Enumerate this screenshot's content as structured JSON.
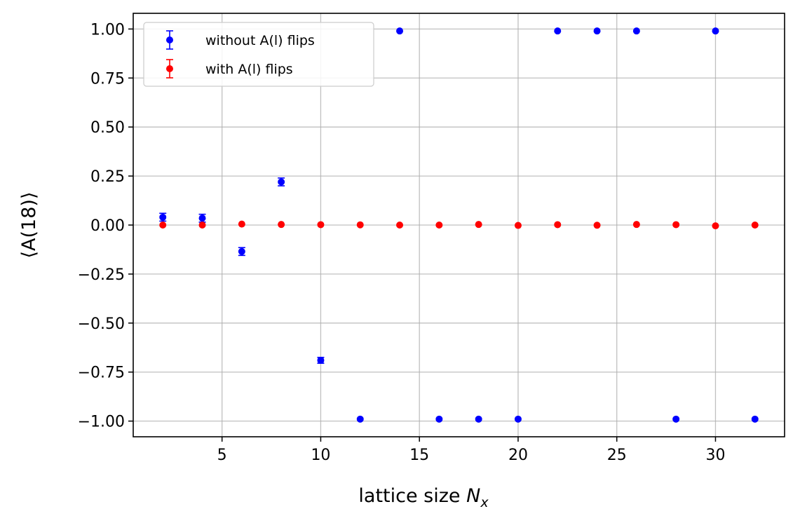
{
  "chart_data": {
    "type": "scatter",
    "xlabel_text": "lattice size ",
    "xlabel_var": "N",
    "xlabel_sub": "x",
    "ylabel_text": "⟨A(18)⟩",
    "xlim": [
      0.5,
      33.5
    ],
    "ylim": [
      -1.08,
      1.08
    ],
    "xticks": [
      5,
      10,
      15,
      20,
      25,
      30
    ],
    "xtick_labels": [
      "5",
      "10",
      "15",
      "20",
      "25",
      "30"
    ],
    "yticks": [
      1.0,
      0.75,
      0.5,
      0.25,
      0.0,
      -0.25,
      -0.5,
      -0.75,
      -1.0
    ],
    "ytick_labels": [
      "1.00",
      "0.75",
      "0.50",
      "0.25",
      "0.00",
      "−0.25",
      "−0.50",
      "−0.75",
      "−1.00"
    ],
    "grid": true,
    "legend_position": "top-left",
    "series": [
      {
        "name": "without A(l) flips",
        "color": "#0000ff",
        "marker": "circle-errorbar",
        "x": [
          2,
          4,
          6,
          8,
          10,
          12,
          14,
          16,
          18,
          20,
          22,
          24,
          26,
          28,
          30,
          32
        ],
        "y": [
          0.04,
          0.035,
          -0.135,
          0.22,
          -0.69,
          -0.99,
          0.99,
          -0.99,
          -0.99,
          -0.99,
          0.99,
          0.99,
          0.99,
          -0.99,
          0.99,
          -0.99
        ],
        "yerr": [
          0.02,
          0.02,
          0.02,
          0.02,
          0.015,
          0.0,
          0.0,
          0.0,
          0.0,
          0.0,
          0.0,
          0.0,
          0.0,
          0.0,
          0.0,
          0.0
        ]
      },
      {
        "name": "with A(l) flips",
        "color": "#ff0000",
        "marker": "circle-errorbar",
        "x": [
          2,
          4,
          6,
          8,
          10,
          12,
          14,
          16,
          18,
          20,
          22,
          24,
          26,
          28,
          30,
          32
        ],
        "y": [
          0.0,
          0.0,
          0.005,
          0.003,
          0.002,
          0.001,
          0.0,
          0.0,
          0.003,
          -0.002,
          0.002,
          -0.001,
          0.003,
          0.002,
          -0.004,
          0.0
        ],
        "yerr": [
          0.004,
          0.004,
          0.004,
          0.004,
          0.004,
          0.004,
          0.004,
          0.004,
          0.004,
          0.004,
          0.004,
          0.004,
          0.004,
          0.004,
          0.004,
          0.004
        ]
      }
    ]
  }
}
